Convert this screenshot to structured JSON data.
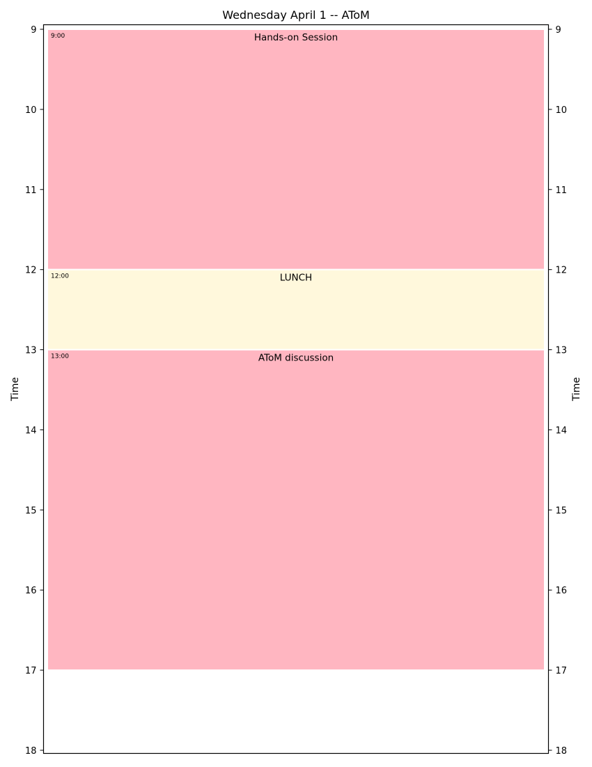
{
  "chart_data": {
    "type": "timeline",
    "title": "Wednesday April 1 -- AToM",
    "ylabel_left": "Time",
    "ylabel_right": "Time",
    "ylim": [
      9,
      18
    ],
    "yticks": [
      9,
      10,
      11,
      12,
      13,
      14,
      15,
      16,
      17,
      18
    ],
    "ytick_labels": [
      "9",
      "10",
      "11",
      "12",
      "13",
      "14",
      "15",
      "16",
      "17",
      "18"
    ],
    "events": [
      {
        "name": "Hands-on Session",
        "start": 9,
        "end": 12,
        "start_label": "9:00",
        "color": "#ffb6c1"
      },
      {
        "name": "LUNCH",
        "start": 12,
        "end": 13,
        "start_label": "12:00",
        "color": "#fff8dc"
      },
      {
        "name": "AToM discussion",
        "start": 13,
        "end": 17,
        "start_label": "13:00",
        "color": "#ffb6c1"
      }
    ]
  }
}
